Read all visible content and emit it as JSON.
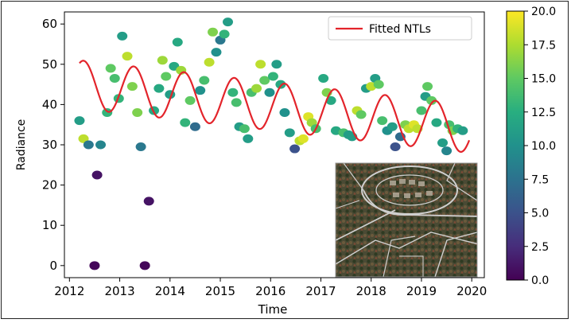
{
  "chart_data": {
    "type": "scatter",
    "title": "",
    "xlabel": "Time",
    "ylabel": "Radiance",
    "xlim": [
      2011.9,
      2020.25
    ],
    "ylim": [
      -3,
      63
    ],
    "x_ticks": [
      "2012",
      "2013",
      "2014",
      "2015",
      "2016",
      "2017",
      "2018",
      "2019",
      "2020"
    ],
    "y_ticks": [
      "0",
      "10",
      "20",
      "30",
      "40",
      "50",
      "60"
    ],
    "grid": false,
    "legend": {
      "position": "top-right",
      "entries": [
        "Fitted NTLs"
      ]
    },
    "colorbar": {
      "colormap": "viridis",
      "range": [
        0.0,
        20.0
      ],
      "ticks": [
        "0.0",
        "2.5",
        "5.0",
        "7.5",
        "10.0",
        "12.5",
        "15.0",
        "17.5",
        "20.0"
      ]
    },
    "line_color": "#e3242b",
    "fitted_curve": {
      "name": "Fitted NTLs",
      "model": "sinusoid with amplitude 6 and period 1 year around a declining baseline",
      "baseline_start": 45,
      "baseline_end": 34,
      "amplitude": 6,
      "period_years": 1,
      "x_start": 2012.2,
      "x_end": 2019.95
    },
    "points": [
      {
        "x": 2012.2,
        "y": 36,
        "c": 11
      },
      {
        "x": 2012.28,
        "y": 31.5,
        "c": 18
      },
      {
        "x": 2012.38,
        "y": 30,
        "c": 8
      },
      {
        "x": 2012.5,
        "y": 0,
        "c": 0.3
      },
      {
        "x": 2012.55,
        "y": 22.5,
        "c": 1
      },
      {
        "x": 2012.62,
        "y": 30,
        "c": 9
      },
      {
        "x": 2012.75,
        "y": 38,
        "c": 13
      },
      {
        "x": 2012.82,
        "y": 49,
        "c": 15
      },
      {
        "x": 2012.9,
        "y": 46.5,
        "c": 14
      },
      {
        "x": 2012.98,
        "y": 41.5,
        "c": 13
      },
      {
        "x": 2013.05,
        "y": 57,
        "c": 11
      },
      {
        "x": 2013.15,
        "y": 52,
        "c": 18
      },
      {
        "x": 2013.25,
        "y": 44.5,
        "c": 16
      },
      {
        "x": 2013.35,
        "y": 38,
        "c": 16
      },
      {
        "x": 2013.42,
        "y": 29.5,
        "c": 8
      },
      {
        "x": 2013.5,
        "y": 0,
        "c": 0.3
      },
      {
        "x": 2013.58,
        "y": 16,
        "c": 1
      },
      {
        "x": 2013.68,
        "y": 38.5,
        "c": 12
      },
      {
        "x": 2013.78,
        "y": 44,
        "c": 12
      },
      {
        "x": 2013.85,
        "y": 51,
        "c": 17
      },
      {
        "x": 2013.92,
        "y": 47,
        "c": 15
      },
      {
        "x": 2014.0,
        "y": 42.5,
        "c": 11
      },
      {
        "x": 2014.08,
        "y": 49.5,
        "c": 12
      },
      {
        "x": 2014.15,
        "y": 55.5,
        "c": 12
      },
      {
        "x": 2014.22,
        "y": 48.5,
        "c": 17
      },
      {
        "x": 2014.3,
        "y": 35.5,
        "c": 13
      },
      {
        "x": 2014.4,
        "y": 41,
        "c": 15
      },
      {
        "x": 2014.5,
        "y": 34.5,
        "c": 7
      },
      {
        "x": 2014.6,
        "y": 43.5,
        "c": 10
      },
      {
        "x": 2014.68,
        "y": 46,
        "c": 14
      },
      {
        "x": 2014.78,
        "y": 50.5,
        "c": 18
      },
      {
        "x": 2014.85,
        "y": 58,
        "c": 16
      },
      {
        "x": 2014.92,
        "y": 53,
        "c": 10
      },
      {
        "x": 2015.0,
        "y": 56,
        "c": 8
      },
      {
        "x": 2015.08,
        "y": 57.5,
        "c": 13
      },
      {
        "x": 2015.15,
        "y": 60.5,
        "c": 11
      },
      {
        "x": 2015.25,
        "y": 43,
        "c": 13
      },
      {
        "x": 2015.32,
        "y": 40.5,
        "c": 14
      },
      {
        "x": 2015.38,
        "y": 34.5,
        "c": 11
      },
      {
        "x": 2015.48,
        "y": 34,
        "c": 14
      },
      {
        "x": 2015.55,
        "y": 31.5,
        "c": 11
      },
      {
        "x": 2015.62,
        "y": 43,
        "c": 14
      },
      {
        "x": 2015.72,
        "y": 44,
        "c": 17
      },
      {
        "x": 2015.8,
        "y": 50,
        "c": 18
      },
      {
        "x": 2015.88,
        "y": 46,
        "c": 15
      },
      {
        "x": 2015.98,
        "y": 43,
        "c": 10
      },
      {
        "x": 2016.05,
        "y": 47,
        "c": 13
      },
      {
        "x": 2016.12,
        "y": 50,
        "c": 11
      },
      {
        "x": 2016.2,
        "y": 45,
        "c": 12
      },
      {
        "x": 2016.28,
        "y": 38,
        "c": 10
      },
      {
        "x": 2016.38,
        "y": 33,
        "c": 11
      },
      {
        "x": 2016.48,
        "y": 29,
        "c": 5
      },
      {
        "x": 2016.58,
        "y": 31,
        "c": 18
      },
      {
        "x": 2016.65,
        "y": 31.5,
        "c": 19
      },
      {
        "x": 2016.75,
        "y": 37,
        "c": 19
      },
      {
        "x": 2016.82,
        "y": 35.5,
        "c": 17
      },
      {
        "x": 2016.9,
        "y": 34,
        "c": 14
      },
      {
        "x": 2017.05,
        "y": 46.5,
        "c": 12
      },
      {
        "x": 2017.12,
        "y": 43,
        "c": 16
      },
      {
        "x": 2017.2,
        "y": 41,
        "c": 12
      },
      {
        "x": 2017.3,
        "y": 33.5,
        "c": 12
      },
      {
        "x": 2017.45,
        "y": 33,
        "c": 14
      },
      {
        "x": 2017.55,
        "y": 32.5,
        "c": 11
      },
      {
        "x": 2017.62,
        "y": 32,
        "c": 11
      },
      {
        "x": 2017.72,
        "y": 38.5,
        "c": 18
      },
      {
        "x": 2017.8,
        "y": 37.5,
        "c": 15
      },
      {
        "x": 2017.9,
        "y": 44,
        "c": 11
      },
      {
        "x": 2018.0,
        "y": 44.5,
        "c": 18
      },
      {
        "x": 2018.08,
        "y": 46.5,
        "c": 11
      },
      {
        "x": 2018.15,
        "y": 45,
        "c": 15
      },
      {
        "x": 2018.22,
        "y": 36,
        "c": 14
      },
      {
        "x": 2018.32,
        "y": 33.5,
        "c": 10
      },
      {
        "x": 2018.42,
        "y": 34.5,
        "c": 11
      },
      {
        "x": 2018.48,
        "y": 29.5,
        "c": 5
      },
      {
        "x": 2018.58,
        "y": 32,
        "c": 7
      },
      {
        "x": 2018.68,
        "y": 35,
        "c": 16
      },
      {
        "x": 2018.75,
        "y": 34,
        "c": 18
      },
      {
        "x": 2018.85,
        "y": 35,
        "c": 19
      },
      {
        "x": 2018.92,
        "y": 34,
        "c": 18
      },
      {
        "x": 2019.0,
        "y": 38.5,
        "c": 14
      },
      {
        "x": 2019.08,
        "y": 42,
        "c": 11
      },
      {
        "x": 2019.12,
        "y": 44.5,
        "c": 15
      },
      {
        "x": 2019.2,
        "y": 41,
        "c": 15
      },
      {
        "x": 2019.3,
        "y": 35.5,
        "c": 12
      },
      {
        "x": 2019.42,
        "y": 30.5,
        "c": 11
      },
      {
        "x": 2019.5,
        "y": 28.5,
        "c": 9
      },
      {
        "x": 2019.55,
        "y": 35,
        "c": 14
      },
      {
        "x": 2019.62,
        "y": 33.5,
        "c": 16
      },
      {
        "x": 2019.72,
        "y": 34,
        "c": 13
      },
      {
        "x": 2019.82,
        "y": 33.5,
        "c": 11
      }
    ]
  }
}
